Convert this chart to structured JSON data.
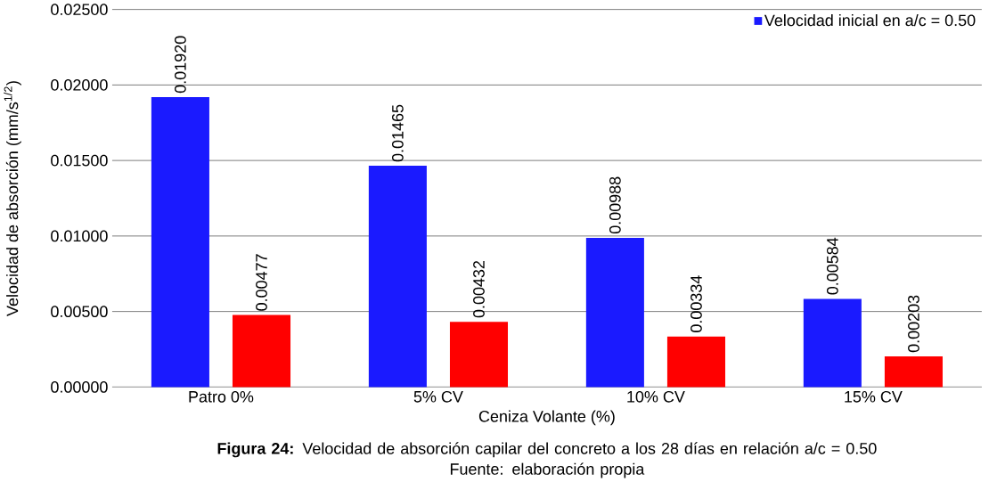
{
  "chart_data": {
    "type": "bar",
    "xlabel": "Ceniza Volante (%)",
    "ylabel": "Velocidad de absorción (mm/s$^{1/2}$)",
    "categories": [
      "Patro 0%",
      "5% CV",
      "10% CV",
      "15% CV"
    ],
    "series": [
      {
        "name": "Velocidad inicial en a/c = 0.50",
        "color": "#1a1aff",
        "values": [
          0.0192,
          0.01465,
          0.00988,
          0.00584
        ],
        "value_labels": [
          "0.01920",
          "0.01465",
          "0.00988",
          "0.00584"
        ]
      },
      {
        "color": "#ff0000",
        "values": [
          0.00477,
          0.00432,
          0.00334,
          0.00203
        ],
        "value_labels": [
          "0.00477",
          "0.00432",
          "0.00334",
          "0.00203"
        ]
      }
    ],
    "ylim": [
      0,
      0.025
    ],
    "yticks": [
      {
        "value": 0,
        "label": "0.00000"
      },
      {
        "value": 0.005,
        "label": "0.00500"
      },
      {
        "value": 0.01,
        "label": "0.01000"
      },
      {
        "value": 0.015,
        "label": "0.01500"
      },
      {
        "value": 0.02,
        "label": "0.02000"
      },
      {
        "value": 0.025,
        "label": "0.02500"
      }
    ],
    "grid": "y",
    "legend": "top right",
    "annotations": [
      "**Figura 24:** Velocidad de absorción capilar del concreto a los 28 días en relación a/c = 0.50",
      "Fuente: elaboración propia"
    ]
  }
}
